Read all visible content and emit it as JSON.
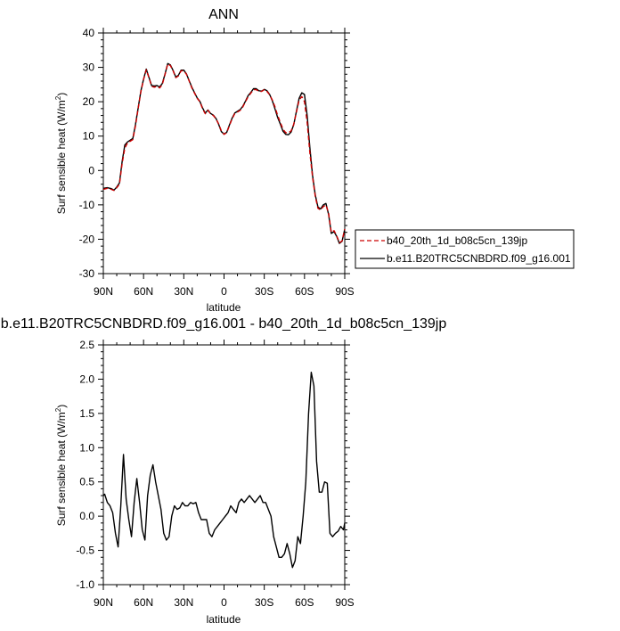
{
  "chart_data": [
    {
      "type": "line",
      "title": "ANN",
      "xlabel": "latitude",
      "ylabel": "Surf sensible heat (W/m",
      "ylabel_sup": "2",
      "ylabel_close": ")",
      "xlim": [
        90,
        -90
      ],
      "ylim": [
        -30,
        40
      ],
      "x_ticks": [
        90,
        60,
        30,
        0,
        -30,
        -60,
        -90
      ],
      "x_tick_labels": [
        "90N",
        "60N",
        "30N",
        "0",
        "30S",
        "60S",
        "90S"
      ],
      "y_ticks": [
        -30,
        -20,
        -10,
        0,
        10,
        20,
        30,
        40
      ],
      "y_tick_labels": [
        "-30",
        "-20",
        "-10",
        "0",
        "10",
        "20",
        "30",
        "40"
      ],
      "grid": false,
      "legend_position": "right",
      "x": [
        90,
        87,
        84,
        82,
        80,
        78,
        76,
        74,
        72,
        70,
        68,
        66,
        64,
        62,
        60,
        58,
        56,
        54,
        52,
        50,
        48,
        46,
        44,
        42,
        40,
        38,
        36,
        34,
        32,
        30,
        28,
        26,
        24,
        22,
        20,
        18,
        16,
        14,
        12,
        10,
        8,
        6,
        4,
        2,
        0,
        -2,
        -4,
        -6,
        -8,
        -10,
        -12,
        -14,
        -16,
        -18,
        -20,
        -22,
        -24,
        -26,
        -28,
        -30,
        -32,
        -34,
        -36,
        -38,
        -40,
        -42,
        -44,
        -46,
        -48,
        -50,
        -52,
        -54,
        -56,
        -58,
        -60,
        -62,
        -64,
        -66,
        -68,
        -70,
        -72,
        -74,
        -76,
        -78,
        -80,
        -82,
        -84,
        -86,
        -88,
        -90
      ],
      "series": [
        {
          "name": "b40_20th_1d_b08c5cn_139jp",
          "color": "#cc0000",
          "dash": "dashed",
          "values": [
            -5.5,
            -5.2,
            -5.5,
            -5.8,
            -5.0,
            -4.0,
            2.0,
            6.5,
            8.0,
            8.5,
            9.0,
            13.0,
            18.0,
            23.0,
            26.5,
            29.3,
            27.0,
            24.5,
            24.2,
            24.5,
            24.0,
            25.0,
            28.0,
            31.0,
            30.5,
            29.0,
            27.0,
            27.5,
            29.0,
            29.0,
            28.0,
            26.0,
            24.0,
            22.5,
            21.0,
            20.0,
            18.0,
            16.5,
            17.5,
            16.5,
            16.0,
            15.0,
            13.5,
            11.5,
            10.5,
            11.0,
            13.0,
            15.0,
            16.5,
            17.0,
            17.5,
            18.5,
            20.0,
            21.5,
            22.5,
            23.5,
            23.5,
            23.0,
            23.0,
            23.5,
            23.0,
            22.0,
            20.5,
            18.5,
            16.0,
            14.0,
            12.0,
            11.0,
            11.0,
            11.5,
            13.5,
            17.0,
            20.5,
            21.5,
            20.0,
            14.0,
            5.0,
            -2.0,
            -7.5,
            -11.0,
            -11.5,
            -10.5,
            -10.0,
            -12.5,
            -18.0,
            -17.5,
            -19.0,
            -21.0,
            -20.5,
            -17.0
          ]
        },
        {
          "name": "b.e11.B20TRC5CNBDRD.f09_g16.001",
          "color": "#000000",
          "dash": "solid",
          "values": [
            -5.2,
            -5.0,
            -5.3,
            -5.7,
            -4.8,
            -3.6,
            2.6,
            7.4,
            8.3,
            8.8,
            9.3,
            13.4,
            18.2,
            23.2,
            26.6,
            29.5,
            27.1,
            24.7,
            24.6,
            24.7,
            24.3,
            25.3,
            28.1,
            31.1,
            30.7,
            29.1,
            27.2,
            27.7,
            29.2,
            29.2,
            28.1,
            26.1,
            24.2,
            22.6,
            21.1,
            20.1,
            18.2,
            16.7,
            17.6,
            16.6,
            16.1,
            15.1,
            13.4,
            11.3,
            10.6,
            11.1,
            13.2,
            15.2,
            16.7,
            17.2,
            17.7,
            18.7,
            20.2,
            21.8,
            22.7,
            23.8,
            23.8,
            23.2,
            23.1,
            23.6,
            23.2,
            22.1,
            20.3,
            17.9,
            15.4,
            13.5,
            11.4,
            10.5,
            10.4,
            11.2,
            13.4,
            17.3,
            21.0,
            22.6,
            22.1,
            16.0,
            6.5,
            -1.5,
            -7.1,
            -10.6,
            -11.2,
            -10.0,
            -9.6,
            -12.8,
            -18.3,
            -17.8,
            -19.2,
            -21.2,
            -20.6,
            -17.1
          ]
        }
      ]
    },
    {
      "type": "line",
      "title": "b.e11.B20TRC5CNBDRD.f09_g16.001 - b40_20th_1d_b08c5cn_139jp",
      "xlabel": "latitude",
      "ylabel": "Surf sensible heat (W/m",
      "ylabel_sup": "2",
      "ylabel_close": ")",
      "xlim": [
        90,
        -90
      ],
      "ylim": [
        -1.0,
        2.5
      ],
      "x_ticks": [
        90,
        60,
        30,
        0,
        -30,
        -60,
        -90
      ],
      "x_tick_labels": [
        "90N",
        "60N",
        "30N",
        "0",
        "30S",
        "60S",
        "90S"
      ],
      "y_ticks": [
        -1.0,
        -0.5,
        0.0,
        0.5,
        1.0,
        1.5,
        2.0,
        2.5
      ],
      "y_tick_labels": [
        "-1.0",
        "-0.5",
        "0.0",
        "0.5",
        "1.0",
        "1.5",
        "2.0",
        "2.5"
      ],
      "grid": false,
      "series": [
        {
          "color": "#000000",
          "dash": "solid",
          "x": [
            90,
            89,
            87,
            85,
            83,
            81,
            79,
            77,
            75,
            73,
            71,
            69,
            67,
            65,
            63,
            61,
            59,
            57,
            55,
            53,
            51,
            49,
            47,
            45,
            43,
            41,
            39,
            37,
            35,
            33,
            31,
            29,
            27,
            25,
            23,
            21,
            19,
            17,
            15,
            13,
            11,
            9,
            7,
            5,
            3,
            1,
            -1,
            -3,
            -5,
            -7,
            -9,
            -11,
            -13,
            -15,
            -17,
            -19,
            -21,
            -23,
            -25,
            -27,
            -29,
            -31,
            -33,
            -35,
            -37,
            -39,
            -41,
            -43,
            -45,
            -47,
            -49,
            -51,
            -53,
            -55,
            -57,
            -59,
            -61,
            -63,
            -65,
            -67,
            -69,
            -71,
            -73,
            -75,
            -77,
            -79,
            -81,
            -83,
            -85,
            -87,
            -89,
            -90
          ],
          "values": [
            0.3,
            0.32,
            0.2,
            0.15,
            0.05,
            -0.25,
            -0.45,
            0.15,
            0.9,
            0.25,
            -0.05,
            -0.3,
            0.2,
            0.55,
            0.2,
            -0.2,
            -0.35,
            0.3,
            0.6,
            0.75,
            0.5,
            0.3,
            0.1,
            -0.25,
            -0.35,
            -0.3,
            0.0,
            0.15,
            0.1,
            0.12,
            0.2,
            0.15,
            0.15,
            0.2,
            0.18,
            0.2,
            0.05,
            -0.05,
            -0.05,
            -0.05,
            -0.25,
            -0.3,
            -0.2,
            -0.15,
            -0.1,
            -0.05,
            0.0,
            0.05,
            0.15,
            0.1,
            0.05,
            0.2,
            0.25,
            0.2,
            0.25,
            0.3,
            0.25,
            0.2,
            0.25,
            0.3,
            0.2,
            0.2,
            0.1,
            0.0,
            -0.3,
            -0.45,
            -0.6,
            -0.6,
            -0.55,
            -0.4,
            -0.55,
            -0.75,
            -0.65,
            -0.3,
            -0.4,
            0.0,
            0.5,
            1.5,
            2.1,
            1.9,
            0.8,
            0.35,
            0.35,
            0.5,
            0.48,
            -0.25,
            -0.3,
            -0.25,
            -0.22,
            -0.15,
            -0.2,
            -0.1
          ]
        }
      ]
    }
  ]
}
